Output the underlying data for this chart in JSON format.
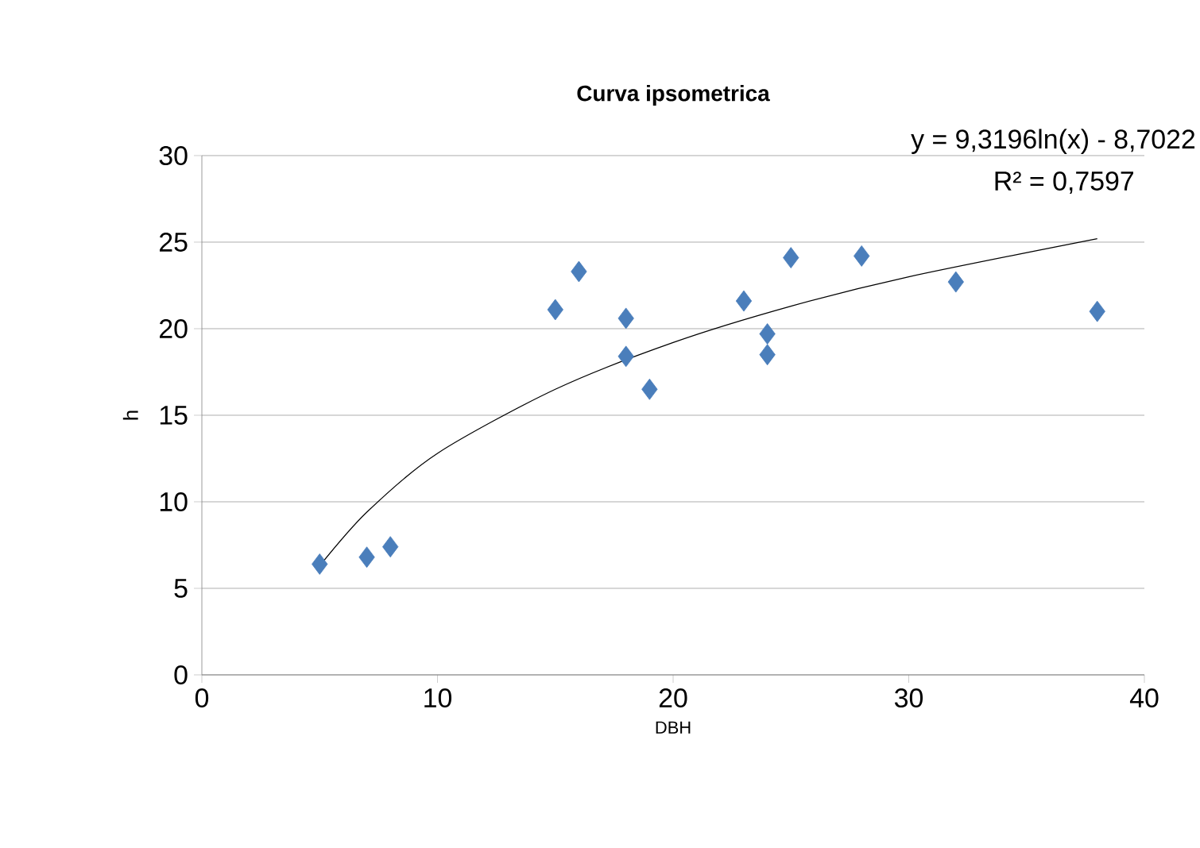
{
  "chart_data": {
    "type": "scatter",
    "title": "Curva ipsometrica",
    "xlabel": "DBH",
    "ylabel": "h",
    "xlim": [
      0,
      40
    ],
    "ylim": [
      0,
      30
    ],
    "xticks": [
      0,
      10,
      20,
      30,
      40
    ],
    "yticks": [
      0,
      5,
      10,
      15,
      20,
      25,
      30
    ],
    "grid": "y",
    "marker": "diamond",
    "annotations": [
      "y = 9,3196ln(x) - 8,7022",
      "R² = 0,7597"
    ],
    "series": [
      {
        "color": "#4a7ebb",
        "x": [
          5,
          7,
          8,
          15,
          16,
          18,
          18,
          19,
          23,
          24,
          24,
          25,
          28,
          32,
          38
        ],
        "values": [
          6.4,
          6.8,
          7.4,
          21.1,
          23.3,
          20.6,
          18.4,
          16.5,
          21.6,
          19.7,
          18.5,
          24.1,
          24.2,
          22.7,
          21.0
        ]
      },
      {
        "type": "line",
        "color": "#000000",
        "marker": "none",
        "x": [
          5,
          7,
          10,
          15,
          20,
          25,
          30,
          38
        ],
        "values": [
          6.3,
          9.4,
          12.8,
          16.5,
          19.2,
          21.3,
          23.0,
          25.2
        ]
      }
    ]
  }
}
